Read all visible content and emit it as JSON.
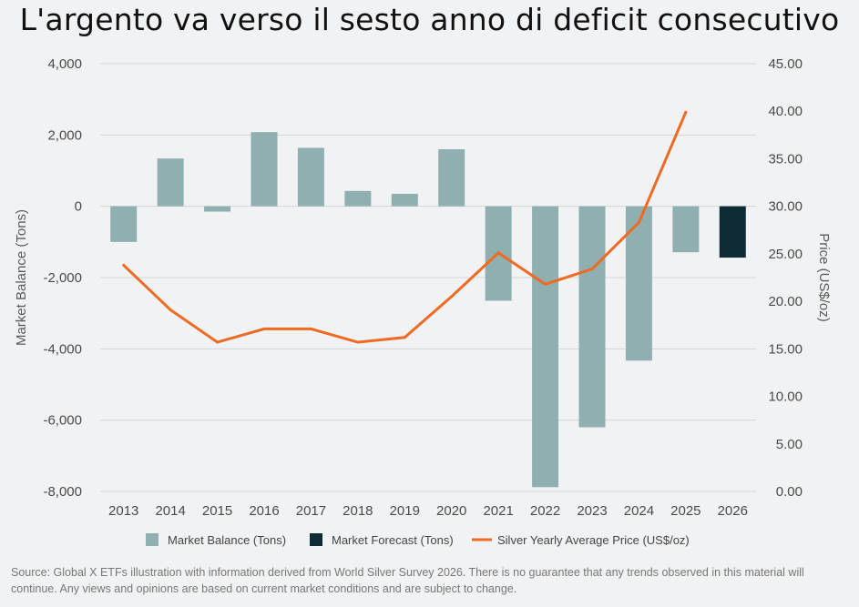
{
  "title": "L'argento va verso il sesto anno di deficit consecutivo",
  "source_note": "Source: Global X ETFs illustration with information derived from World Silver Survey 2026. There is no guarantee that any trends observed in this material will continue. Any views and opinions are based on current market conditions and are subject to change.",
  "chart_data": {
    "type": "bar",
    "categories": [
      "2013",
      "2014",
      "2015",
      "2016",
      "2017",
      "2018",
      "2019",
      "2020",
      "2021",
      "2022",
      "2023",
      "2024",
      "2025",
      "2026"
    ],
    "series": [
      {
        "name": "Market Balance (Tons)",
        "kind": "bar",
        "axis": "left",
        "color": "#8fafb1",
        "values": [
          -1000,
          1340,
          -150,
          2080,
          1640,
          430,
          350,
          1600,
          -2650,
          -7880,
          -6200,
          -4330,
          -1290,
          null
        ]
      },
      {
        "name": "Market Forecast (Tons)",
        "kind": "bar",
        "axis": "left",
        "color": "#0e2a35",
        "values": [
          null,
          null,
          null,
          null,
          null,
          null,
          null,
          null,
          null,
          null,
          null,
          null,
          null,
          -1440
        ]
      },
      {
        "name": "Silver Yearly Average Price (US$/oz)",
        "kind": "line",
        "axis": "right",
        "color": "#ef6a22",
        "values": [
          23.8,
          19.1,
          15.7,
          17.1,
          17.1,
          15.7,
          16.2,
          20.5,
          25.1,
          21.8,
          23.4,
          28.3,
          39.9,
          null
        ]
      }
    ],
    "ylabel": "Market Balance (Tons)",
    "ylabel_right": "Price (US$/oz)",
    "ylim": [
      -8000,
      4000
    ],
    "yticks": [
      4000,
      2000,
      0,
      -2000,
      -4000,
      -6000,
      -8000
    ],
    "ytick_labels": [
      "4,000",
      "2,000",
      "0",
      "-2,000",
      "-4,000",
      "-6,000",
      "-8,000"
    ],
    "ylim_right": [
      0,
      45
    ],
    "yticks_right": [
      45,
      40,
      35,
      30,
      25,
      20,
      15,
      10,
      5,
      0
    ],
    "ytick_right_labels": [
      "45.00",
      "40.00",
      "35.00",
      "30.00",
      "25.00",
      "20.00",
      "15.00",
      "10.00",
      "5.00",
      "0.00"
    ],
    "grid": true,
    "legend_position": "bottom"
  }
}
